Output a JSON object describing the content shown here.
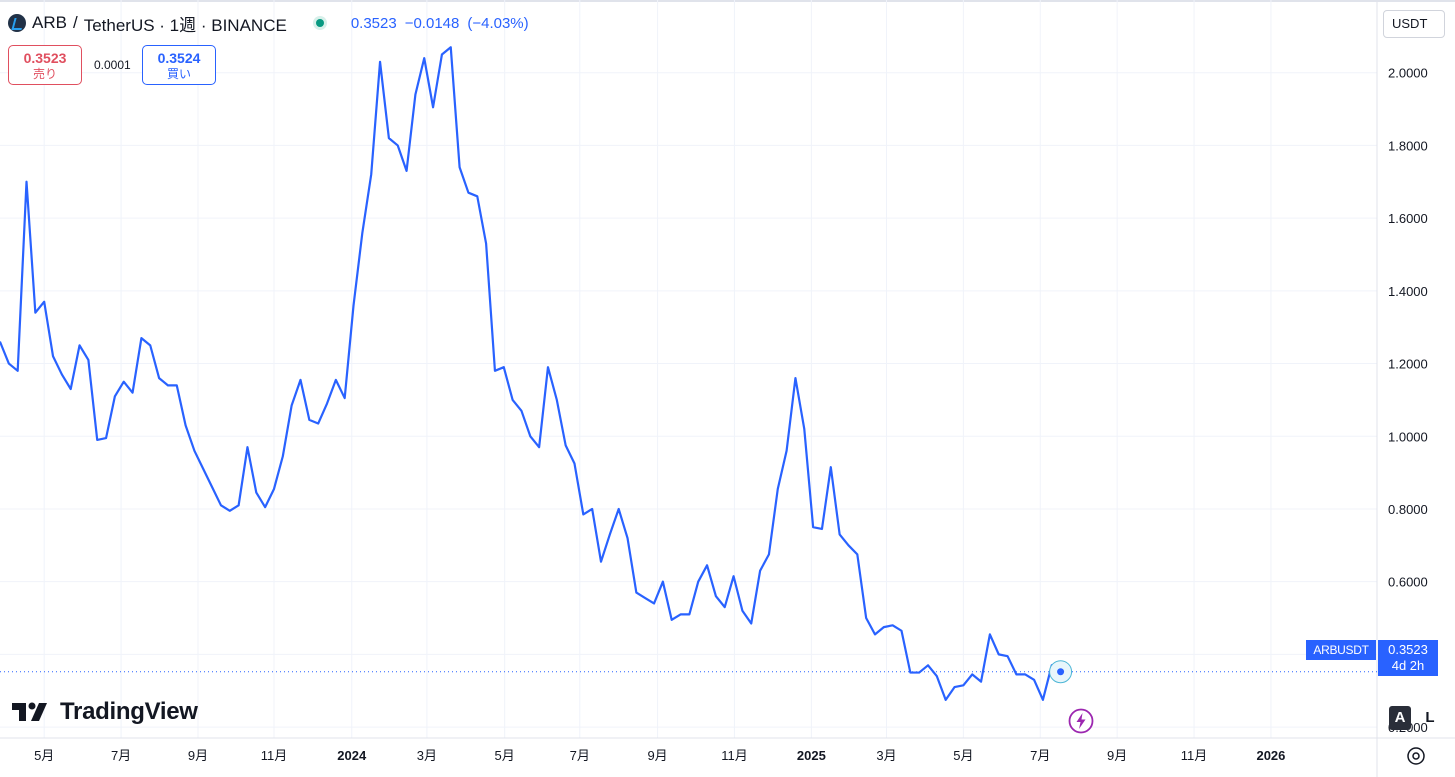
{
  "header": {
    "symbol": "ARB",
    "separator": "/",
    "title": "TetherUS · 1週 · BINANCE",
    "last": "0.3523",
    "change": "−0.0148",
    "change_pct": "(−4.03%)"
  },
  "trade": {
    "sell_price": "0.3523",
    "sell_label": "売り",
    "spread": "0.0001",
    "buy_price": "0.3524",
    "buy_label": "買い"
  },
  "currency": {
    "label": "USDT",
    "icon": "chevron-down-icon"
  },
  "price_tag": {
    "symbol": "ARBUSDT",
    "price": "0.3523",
    "countdown": "4d 2h"
  },
  "branding": {
    "name": "TradingView"
  },
  "scale_buttons": {
    "auto": "A",
    "log": "L"
  },
  "colors": {
    "line": "#2962ff",
    "sell": "#e04f5f",
    "buy": "#2962ff",
    "up": "#089981"
  },
  "chart_data": {
    "type": "line",
    "title": "ARB / TetherUS · 1週 · BINANCE",
    "ylim": [
      0.17,
      2.2
    ],
    "y_ticks": [
      "0.2000",
      "0.4000",
      "0.6000",
      "0.8000",
      "1.0000",
      "1.2000",
      "1.4000",
      "1.6000",
      "1.8000",
      "2.0000"
    ],
    "y_tick_values": [
      0.2,
      0.4,
      0.6,
      0.8,
      1.0,
      1.2,
      1.4,
      1.6,
      1.8,
      2.0
    ],
    "x_ticks": [
      "5月",
      "7月",
      "9月",
      "11月",
      "2024",
      "3月",
      "5月",
      "7月",
      "9月",
      "11月",
      "2025",
      "3月",
      "5月",
      "7月",
      "9月",
      "11月",
      "2026"
    ],
    "x_tick_bold": [
      false,
      false,
      false,
      false,
      true,
      false,
      false,
      false,
      false,
      false,
      true,
      false,
      false,
      false,
      false,
      false,
      true
    ],
    "x_tick_weeks": [
      5.0,
      13.7,
      22.4,
      31.0,
      39.8,
      48.3,
      57.1,
      65.6,
      74.4,
      83.1,
      91.8,
      100.3,
      109.0,
      117.7,
      126.4,
      135.1,
      143.8
    ],
    "x_range_weeks": [
      0,
      155.8
    ],
    "series": [
      {
        "name": "ARBUSDT",
        "values": [
          1.26,
          1.2,
          1.18,
          1.7,
          1.34,
          1.37,
          1.22,
          1.17,
          1.13,
          1.25,
          1.21,
          0.99,
          0.995,
          1.11,
          1.15,
          1.12,
          1.27,
          1.25,
          1.16,
          1.14,
          1.14,
          1.03,
          0.96,
          0.91,
          0.86,
          0.81,
          0.795,
          0.81,
          0.97,
          0.845,
          0.805,
          0.855,
          0.945,
          1.085,
          1.155,
          1.045,
          1.035,
          1.09,
          1.155,
          1.105,
          1.36,
          1.56,
          1.72,
          2.03,
          1.82,
          1.8,
          1.73,
          1.94,
          2.04,
          1.905,
          2.05,
          2.07,
          1.74,
          1.67,
          1.66,
          1.53,
          1.18,
          1.19,
          1.1,
          1.07,
          1.0,
          0.97,
          1.19,
          1.1,
          0.975,
          0.925,
          0.785,
          0.8,
          0.655,
          0.73,
          0.8,
          0.72,
          0.57,
          0.555,
          0.54,
          0.6,
          0.495,
          0.51,
          0.51,
          0.6,
          0.645,
          0.56,
          0.53,
          0.615,
          0.52,
          0.485,
          0.63,
          0.675,
          0.855,
          0.96,
          1.16,
          1.02,
          0.75,
          0.745,
          0.915,
          0.73,
          0.7,
          0.675,
          0.5,
          0.455,
          0.475,
          0.48,
          0.465,
          0.35,
          0.35,
          0.37,
          0.34,
          0.275,
          0.31,
          0.315,
          0.345,
          0.325,
          0.455,
          0.4,
          0.395,
          0.345,
          0.345,
          0.33,
          0.275,
          0.37,
          0.3523
        ]
      }
    ]
  }
}
